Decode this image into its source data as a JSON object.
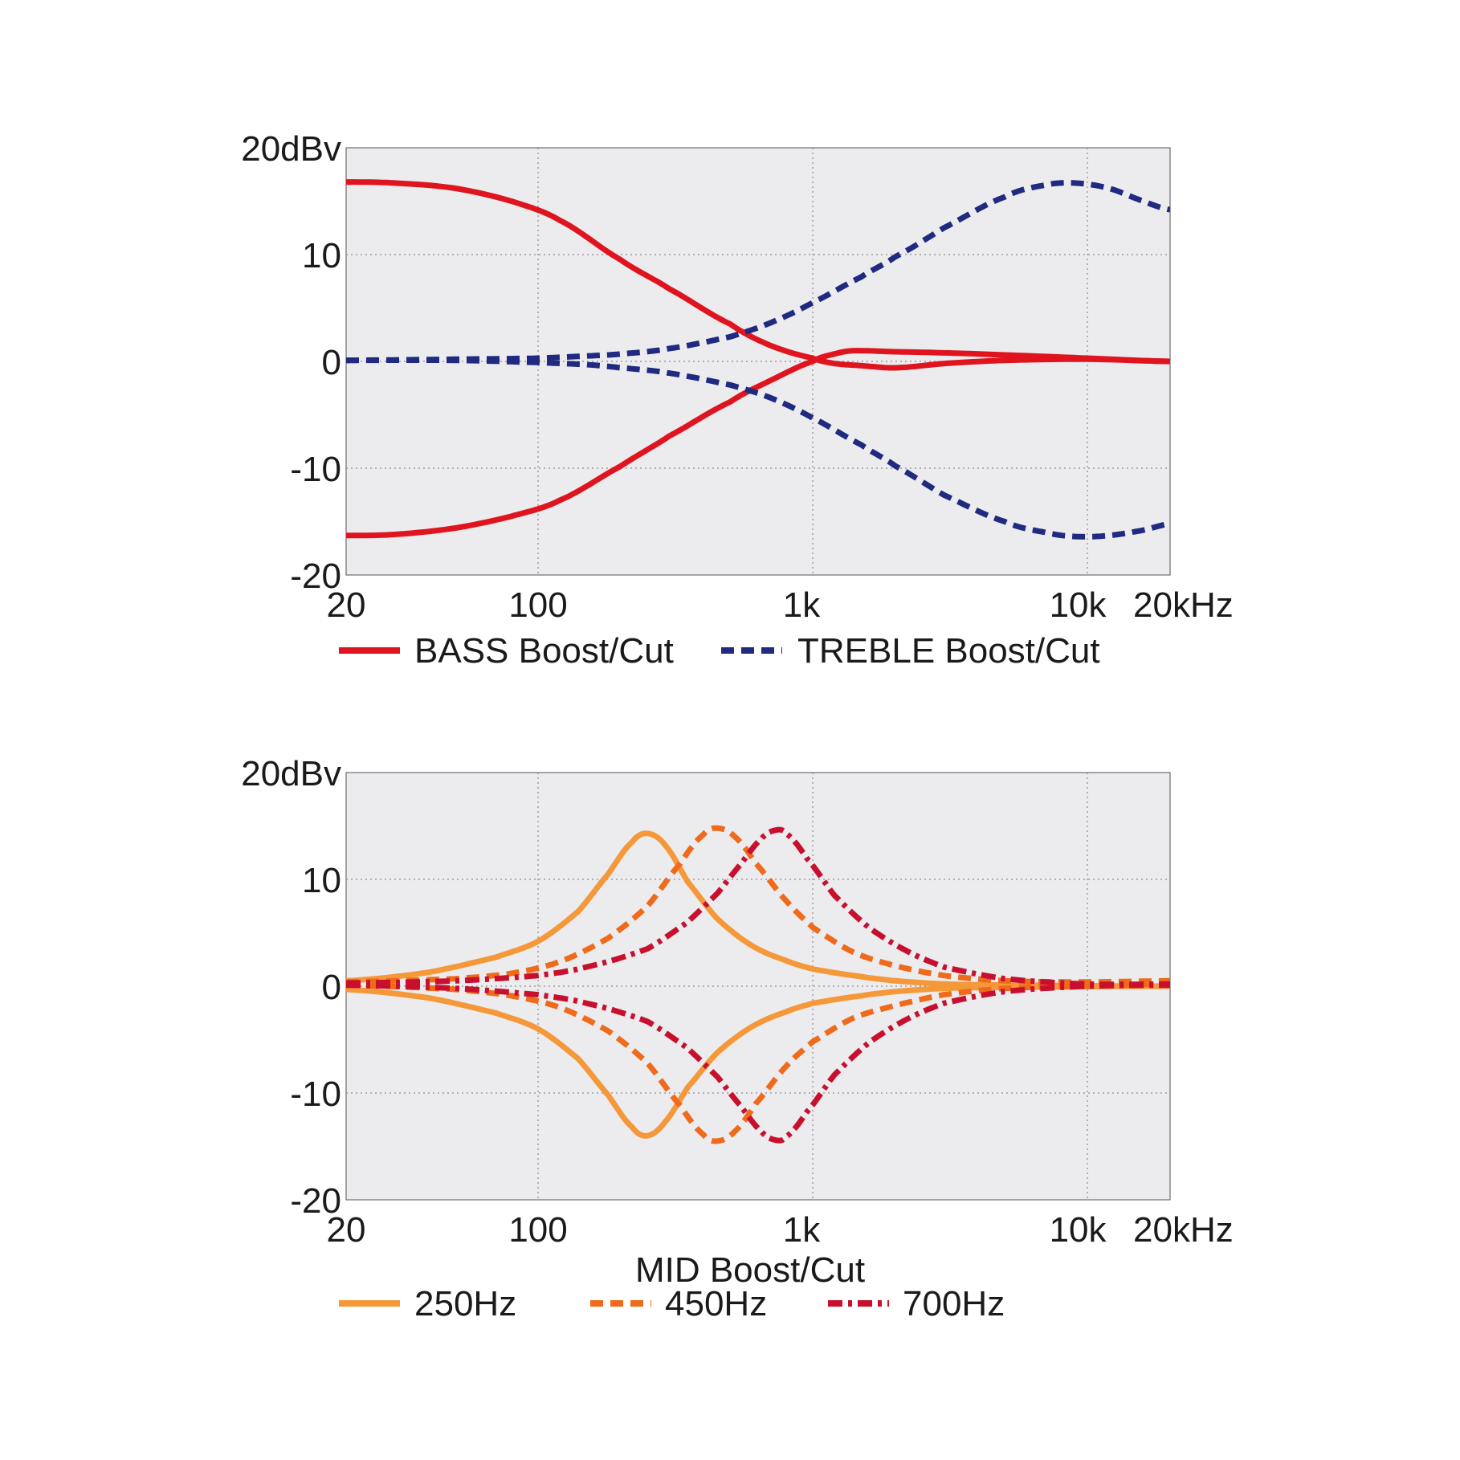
{
  "chart_data": [
    {
      "id": "bass-treble",
      "type": "line",
      "xscale": "log",
      "xlim": [
        20,
        20000
      ],
      "ylim": [
        -20,
        20
      ],
      "x_ticks": [
        {
          "value": 20,
          "label": "20"
        },
        {
          "value": 100,
          "label": "100"
        },
        {
          "value": 1000,
          "label": "1k"
        },
        {
          "value": 10000,
          "label": "10k"
        },
        {
          "value": 20000,
          "label": "20kHz"
        }
      ],
      "y_ticks": [
        {
          "value": 20,
          "label": "20dBv"
        },
        {
          "value": 10,
          "label": "10"
        },
        {
          "value": 0,
          "label": "0"
        },
        {
          "value": -10,
          "label": "-10"
        },
        {
          "value": -20,
          "label": "-20"
        }
      ],
      "grid_x": [
        100,
        1000,
        10000
      ],
      "grid_y": [
        10,
        0,
        -10
      ],
      "xlabel": "",
      "legend": [
        {
          "label": "BASS Boost/Cut",
          "color": "#e0141e",
          "style": "solid"
        },
        {
          "label": "TREBLE Boost/Cut",
          "color": "#1f2a80",
          "style": "dashed"
        }
      ],
      "series": [
        {
          "name": "BASS Boost",
          "legend_index": 0,
          "color": "#e0141e",
          "style": "solid",
          "x": [
            20,
            30,
            50,
            80,
            120,
            200,
            300,
            500,
            700,
            1000,
            1200,
            1500,
            2000,
            3000,
            5000,
            10000,
            20000
          ],
          "y": [
            16.8,
            16.7,
            16.2,
            15.0,
            13.2,
            9.5,
            6.8,
            3.5,
            1.5,
            0.3,
            -0.2,
            -0.4,
            -0.6,
            -0.2,
            0.1,
            0.2,
            0.0
          ]
        },
        {
          "name": "BASS Cut",
          "legend_index": 0,
          "color": "#e0141e",
          "style": "solid",
          "x": [
            20,
            30,
            50,
            80,
            120,
            200,
            300,
            500,
            700,
            1000,
            1200,
            1400,
            2000,
            3000,
            5000,
            10000,
            20000
          ],
          "y": [
            -16.3,
            -16.2,
            -15.6,
            -14.5,
            -13.0,
            -9.8,
            -7.0,
            -3.8,
            -1.8,
            0.0,
            0.7,
            1.0,
            0.9,
            0.8,
            0.6,
            0.3,
            0.0
          ]
        },
        {
          "name": "TREBLE Boost",
          "legend_index": 1,
          "color": "#1f2a80",
          "style": "dashed",
          "x": [
            20,
            50,
            100,
            150,
            200,
            300,
            500,
            700,
            1000,
            1500,
            2000,
            3000,
            5000,
            7000,
            9000,
            12000,
            16000,
            20000
          ],
          "y": [
            0.1,
            0.2,
            0.3,
            0.5,
            0.7,
            1.2,
            2.3,
            3.6,
            5.5,
            7.9,
            9.8,
            12.5,
            15.4,
            16.5,
            16.7,
            16.2,
            15.0,
            14.2
          ]
        },
        {
          "name": "TREBLE Cut",
          "legend_index": 1,
          "color": "#1f2a80",
          "style": "dashed",
          "x": [
            20,
            50,
            100,
            150,
            200,
            300,
            500,
            700,
            1000,
            1500,
            2000,
            3000,
            5000,
            7000,
            9000,
            12000,
            16000,
            20000
          ],
          "y": [
            0.1,
            0.1,
            -0.1,
            -0.3,
            -0.6,
            -1.1,
            -2.2,
            -3.4,
            -5.3,
            -7.8,
            -9.8,
            -12.5,
            -15.0,
            -16.0,
            -16.4,
            -16.3,
            -15.8,
            -15.2
          ]
        }
      ]
    },
    {
      "id": "mid",
      "type": "line",
      "xscale": "log",
      "xlim": [
        20,
        20000
      ],
      "ylim": [
        -20,
        20
      ],
      "x_ticks": [
        {
          "value": 20,
          "label": "20"
        },
        {
          "value": 100,
          "label": "100"
        },
        {
          "value": 1000,
          "label": "1k"
        },
        {
          "value": 10000,
          "label": "10k"
        },
        {
          "value": 20000,
          "label": "20kHz"
        }
      ],
      "y_ticks": [
        {
          "value": 20,
          "label": "20dBv"
        },
        {
          "value": 10,
          "label": "10"
        },
        {
          "value": 0,
          "label": "0"
        },
        {
          "value": -10,
          "label": "-10"
        },
        {
          "value": -20,
          "label": "-20"
        }
      ],
      "grid_x": [
        100,
        1000,
        10000
      ],
      "grid_y": [
        10,
        0,
        -10
      ],
      "xlabel": "MID Boost/Cut",
      "legend": [
        {
          "label": "250Hz",
          "color": "#f5983a",
          "style": "solid"
        },
        {
          "label": "450Hz",
          "color": "#ef6b1b",
          "style": "dashed"
        },
        {
          "label": "700Hz",
          "color": "#c8102e",
          "style": "dashdot"
        }
      ],
      "series": [
        {
          "name": "250Hz Boost",
          "legend_index": 0,
          "color": "#f5983a",
          "style": "solid",
          "x": [
            20,
            40,
            70,
            100,
            140,
            180,
            220,
            250,
            290,
            350,
            450,
            600,
            800,
            1000,
            1500,
            2000,
            3000,
            5000,
            20000
          ],
          "y": [
            0.5,
            1.3,
            2.7,
            4.2,
            7.0,
            10.5,
            13.5,
            14.3,
            13.2,
            9.8,
            6.3,
            3.8,
            2.4,
            1.6,
            0.9,
            0.5,
            0.2,
            0.1,
            0.0
          ]
        },
        {
          "name": "250Hz Cut",
          "legend_index": 0,
          "color": "#f5983a",
          "style": "solid",
          "x": [
            20,
            40,
            70,
            100,
            140,
            180,
            220,
            250,
            290,
            350,
            450,
            600,
            800,
            1000,
            1500,
            2000,
            3000,
            5000,
            20000
          ],
          "y": [
            -0.3,
            -1.1,
            -2.5,
            -4.0,
            -6.8,
            -10.2,
            -13.2,
            -14.0,
            -12.7,
            -9.5,
            -6.2,
            -3.8,
            -2.4,
            -1.6,
            -0.9,
            -0.5,
            -0.2,
            -0.1,
            0.0
          ]
        },
        {
          "name": "450Hz Boost",
          "legend_index": 1,
          "color": "#ef6b1b",
          "style": "dashed",
          "x": [
            20,
            50,
            80,
            120,
            180,
            250,
            330,
            400,
            450,
            520,
            620,
            800,
            1000,
            1400,
            2000,
            3000,
            5000,
            10000,
            20000
          ],
          "y": [
            0.4,
            0.7,
            1.2,
            2.3,
            4.5,
            7.5,
            11.5,
            14.2,
            14.8,
            14.0,
            11.5,
            8.0,
            5.5,
            3.2,
            1.9,
            1.0,
            0.5,
            0.4,
            0.5
          ]
        },
        {
          "name": "450Hz Cut",
          "legend_index": 1,
          "color": "#ef6b1b",
          "style": "dashed",
          "x": [
            20,
            50,
            80,
            120,
            180,
            250,
            330,
            400,
            450,
            520,
            620,
            800,
            1000,
            1400,
            2000,
            3000,
            5000,
            10000,
            20000
          ],
          "y": [
            0.1,
            -0.3,
            -0.9,
            -2.0,
            -4.2,
            -7.2,
            -11.2,
            -13.9,
            -14.5,
            -13.6,
            -11.0,
            -7.5,
            -5.2,
            -3.0,
            -1.8,
            -0.8,
            -0.2,
            0.0,
            0.2
          ]
        },
        {
          "name": "700Hz Boost",
          "legend_index": 2,
          "color": "#c8102e",
          "style": "dashdot",
          "x": [
            20,
            50,
            100,
            150,
            250,
            350,
            450,
            550,
            650,
            730,
            800,
            950,
            1200,
            1600,
            2200,
            3000,
            5000,
            10000,
            20000
          ],
          "y": [
            0.3,
            0.5,
            1.0,
            1.8,
            3.5,
            6.0,
            8.7,
            11.5,
            13.8,
            14.6,
            14.3,
            12.0,
            8.5,
            5.5,
            3.3,
            1.8,
            0.7,
            0.2,
            0.2
          ]
        },
        {
          "name": "700Hz Cut",
          "legend_index": 2,
          "color": "#c8102e",
          "style": "dashdot",
          "x": [
            20,
            50,
            100,
            150,
            250,
            350,
            450,
            550,
            650,
            730,
            800,
            950,
            1200,
            1600,
            2200,
            3000,
            5000,
            10000,
            20000
          ],
          "y": [
            0.1,
            -0.2,
            -0.8,
            -1.6,
            -3.3,
            -5.8,
            -8.5,
            -11.3,
            -13.6,
            -14.4,
            -14.1,
            -11.8,
            -8.3,
            -5.3,
            -3.1,
            -1.6,
            -0.5,
            0.0,
            0.1
          ]
        }
      ]
    }
  ]
}
